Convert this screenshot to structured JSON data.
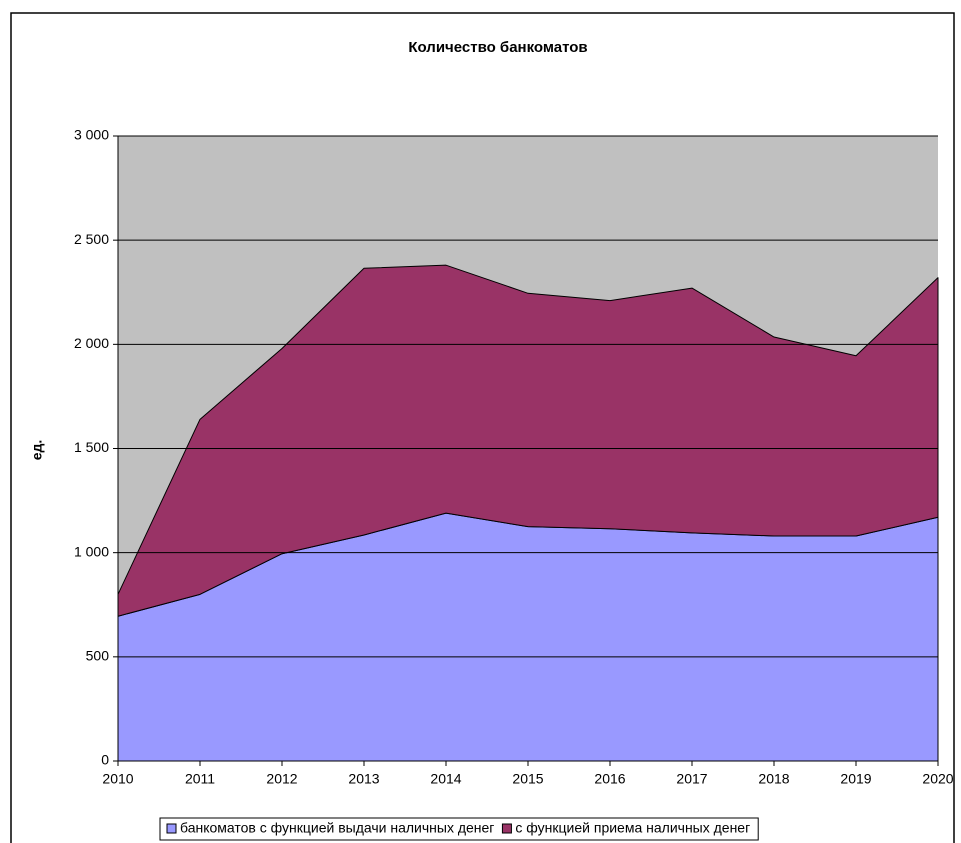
{
  "chart_data": {
    "type": "stacked_area",
    "title": "Количество банкоматов",
    "y_label": "ед.",
    "categories": [
      "2010",
      "2011",
      "2012",
      "2013",
      "2014",
      "2015",
      "2016",
      "2017",
      "2018",
      "2019",
      "2020"
    ],
    "series": [
      {
        "name": "банкоматов с функцией выдачи наличных денег",
        "color": "#9999ff",
        "values": [
          695,
          800,
          995,
          1085,
          1190,
          1125,
          1115,
          1095,
          1080,
          1080,
          1170
        ]
      },
      {
        "name": "с функцией приема наличных денег",
        "color": "#993366",
        "values": [
          105,
          840,
          985,
          1280,
          1190,
          1120,
          1095,
          1175,
          955,
          865,
          1150
        ]
      }
    ],
    "ylim": [
      0,
      3000
    ],
    "yticks": [
      0,
      500,
      {
        "value": 1000,
        "label": "1 000"
      },
      {
        "value": 1500,
        "label": "1 500"
      },
      {
        "value": 2000,
        "label": "2 000"
      },
      {
        "value": 2500,
        "label": "2 500"
      },
      {
        "value": 3000,
        "label": "3 000"
      }
    ],
    "grid": true,
    "plot_background": "#c0c0c0",
    "legend": "bottom"
  }
}
